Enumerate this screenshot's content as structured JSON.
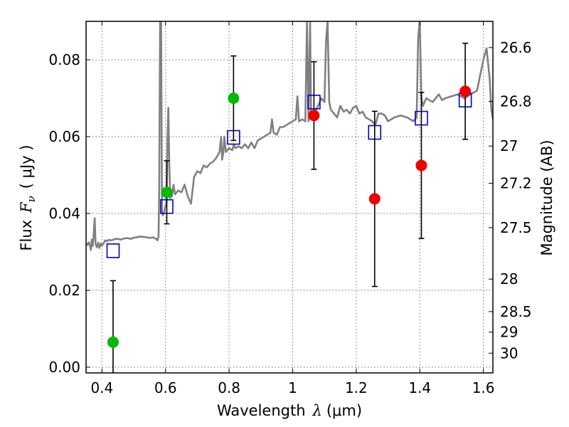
{
  "chart_data": {
    "type": "scatter",
    "xlabel_prefix": "Wavelength",
    "xlabel_symbol": "λ",
    "xlabel_unit": "(μm)",
    "ylabel_prefix": "Flux",
    "ylabel_symbol": "F",
    "ylabel_sub": "ν",
    "ylabel_unit": "( μJy )",
    "y2label": "Magnitude (AB)",
    "xlim": [
      0.35,
      1.63
    ],
    "ylim": [
      -0.0015,
      0.09
    ],
    "grid": true,
    "x_ticks": [
      "0.4",
      "0.6",
      "0.8",
      "1",
      "1.2",
      "1.4",
      "1.6"
    ],
    "y_ticks": [
      "0.00",
      "0.02",
      "0.04",
      "0.06",
      "0.08"
    ],
    "y2_ticks": [
      "26.6",
      "26.8",
      "27",
      "27.2",
      "27.5",
      "28",
      "28.5",
      "29",
      "30"
    ],
    "colors": {
      "model": "#808080",
      "model_flux": "#0000cc",
      "detected": "#00bb00",
      "other": "#ee0000",
      "errorbar": "#000000"
    },
    "series": [
      {
        "kind": "model",
        "points": [
          [
            0.35,
            0.0322
          ],
          [
            0.355,
            0.0318
          ],
          [
            0.358,
            0.0325
          ],
          [
            0.362,
            0.0318
          ],
          [
            0.365,
            0.0305
          ],
          [
            0.368,
            0.0332
          ],
          [
            0.371,
            0.0315
          ],
          [
            0.374,
            0.0345
          ],
          [
            0.377,
            0.0388
          ],
          [
            0.38,
            0.032
          ],
          [
            0.384,
            0.0312
          ],
          [
            0.388,
            0.0324
          ],
          [
            0.392,
            0.031
          ],
          [
            0.396,
            0.0322
          ],
          [
            0.4,
            0.0316
          ],
          [
            0.405,
            0.0322
          ],
          [
            0.41,
            0.033
          ],
          [
            0.415,
            0.0327
          ],
          [
            0.42,
            0.0331
          ],
          [
            0.43,
            0.033
          ],
          [
            0.44,
            0.0333
          ],
          [
            0.45,
            0.0334
          ],
          [
            0.46,
            0.0332
          ],
          [
            0.47,
            0.0335
          ],
          [
            0.48,
            0.0336
          ],
          [
            0.49,
            0.0334
          ],
          [
            0.5,
            0.0337
          ],
          [
            0.51,
            0.0338
          ],
          [
            0.52,
            0.034
          ],
          [
            0.53,
            0.0339
          ],
          [
            0.54,
            0.0338
          ],
          [
            0.55,
            0.0336
          ],
          [
            0.56,
            0.0338
          ],
          [
            0.57,
            0.0334
          ],
          [
            0.575,
            0.033
          ],
          [
            0.578,
            0.034
          ],
          [
            0.58,
            0.045
          ],
          [
            0.583,
            0.09
          ],
          [
            0.586,
            0.09
          ],
          [
            0.589,
            0.04
          ],
          [
            0.592,
            0.0395
          ],
          [
            0.596,
            0.0405
          ],
          [
            0.6,
            0.042
          ],
          [
            0.603,
            0.043
          ],
          [
            0.606,
            0.059
          ],
          [
            0.609,
            0.0675
          ],
          [
            0.612,
            0.052
          ],
          [
            0.615,
            0.044
          ],
          [
            0.62,
            0.0445
          ],
          [
            0.625,
            0.0475
          ],
          [
            0.63,
            0.045
          ],
          [
            0.64,
            0.046
          ],
          [
            0.65,
            0.0455
          ],
          [
            0.66,
            0.0475
          ],
          [
            0.67,
            0.0445
          ],
          [
            0.68,
            0.0425
          ],
          [
            0.69,
            0.0495
          ],
          [
            0.7,
            0.051
          ],
          [
            0.71,
            0.0505
          ],
          [
            0.72,
            0.0525
          ],
          [
            0.73,
            0.052
          ],
          [
            0.74,
            0.053
          ],
          [
            0.75,
            0.0535
          ],
          [
            0.76,
            0.0545
          ],
          [
            0.77,
            0.056
          ],
          [
            0.775,
            0.06
          ],
          [
            0.778,
            0.054
          ],
          [
            0.782,
            0.056
          ],
          [
            0.785,
            0.06
          ],
          [
            0.79,
            0.056
          ],
          [
            0.8,
            0.057
          ],
          [
            0.81,
            0.0565
          ],
          [
            0.815,
            0.058
          ],
          [
            0.82,
            0.057
          ],
          [
            0.83,
            0.0575
          ],
          [
            0.84,
            0.057
          ],
          [
            0.85,
            0.058
          ],
          [
            0.86,
            0.057
          ],
          [
            0.87,
            0.0585
          ],
          [
            0.88,
            0.057
          ],
          [
            0.89,
            0.059
          ],
          [
            0.9,
            0.0595
          ],
          [
            0.91,
            0.06
          ],
          [
            0.92,
            0.0605
          ],
          [
            0.93,
            0.061
          ],
          [
            0.935,
            0.0645
          ],
          [
            0.94,
            0.061
          ],
          [
            0.95,
            0.0605
          ],
          [
            0.96,
            0.0625
          ],
          [
            0.97,
            0.0625
          ],
          [
            0.98,
            0.063
          ],
          [
            0.99,
            0.0635
          ],
          [
            1.0,
            0.064
          ],
          [
            1.01,
            0.0645
          ],
          [
            1.015,
            0.0705
          ],
          [
            1.02,
            0.064
          ],
          [
            1.03,
            0.0645
          ],
          [
            1.04,
            0.064
          ],
          [
            1.045,
            0.09
          ],
          [
            1.05,
            0.064
          ],
          [
            1.055,
            0.09
          ],
          [
            1.058,
            0.0645
          ],
          [
            1.06,
            0.065
          ],
          [
            1.07,
            0.0665
          ],
          [
            1.08,
            0.068
          ],
          [
            1.09,
            0.07
          ],
          [
            1.1,
            0.069
          ],
          [
            1.105,
            0.085
          ],
          [
            1.11,
            0.09
          ],
          [
            1.115,
            0.069
          ],
          [
            1.12,
            0.067
          ],
          [
            1.13,
            0.066
          ],
          [
            1.14,
            0.065
          ],
          [
            1.15,
            0.068
          ],
          [
            1.16,
            0.0665
          ],
          [
            1.17,
            0.067
          ],
          [
            1.18,
            0.066
          ],
          [
            1.19,
            0.0675
          ],
          [
            1.2,
            0.068
          ],
          [
            1.21,
            0.066
          ],
          [
            1.22,
            0.0665
          ],
          [
            1.23,
            0.065
          ],
          [
            1.24,
            0.0645
          ],
          [
            1.25,
            0.064
          ],
          [
            1.26,
            0.063
          ],
          [
            1.27,
            0.066
          ],
          [
            1.28,
            0.066
          ],
          [
            1.29,
            0.0655
          ],
          [
            1.3,
            0.064
          ],
          [
            1.32,
            0.065
          ],
          [
            1.34,
            0.0655
          ],
          [
            1.36,
            0.065
          ],
          [
            1.38,
            0.064
          ],
          [
            1.39,
            0.065
          ],
          [
            1.395,
            0.086
          ],
          [
            1.4,
            0.09
          ],
          [
            1.405,
            0.07
          ],
          [
            1.41,
            0.068
          ],
          [
            1.42,
            0.07
          ],
          [
            1.43,
            0.0695
          ],
          [
            1.44,
            0.069
          ],
          [
            1.45,
            0.07
          ],
          [
            1.46,
            0.071
          ],
          [
            1.47,
            0.0695
          ],
          [
            1.48,
            0.07
          ],
          [
            1.5,
            0.0705
          ],
          [
            1.52,
            0.071
          ],
          [
            1.54,
            0.07
          ],
          [
            1.56,
            0.071
          ],
          [
            1.58,
            0.072
          ],
          [
            1.59,
            0.076
          ],
          [
            1.6,
            0.08
          ],
          [
            1.61,
            0.083
          ],
          [
            1.62,
            0.075
          ],
          [
            1.625,
            0.067
          ],
          [
            1.63,
            0.0645
          ]
        ]
      },
      {
        "kind": "model_flux",
        "points": [
          [
            0.435,
            0.0303
          ],
          [
            0.604,
            0.0418
          ],
          [
            0.814,
            0.0598
          ],
          [
            1.067,
            0.069
          ],
          [
            1.258,
            0.0611
          ],
          [
            1.405,
            0.0648
          ],
          [
            1.543,
            0.0695
          ]
        ]
      },
      {
        "kind": "detected",
        "points": [
          [
            0.435,
            0.0065
          ],
          [
            0.604,
            0.0455
          ],
          [
            0.814,
            0.07
          ]
        ],
        "err": [
          0.016,
          0.0082,
          0.011
        ]
      },
      {
        "kind": "other",
        "points": [
          [
            1.067,
            0.0655
          ],
          [
            1.258,
            0.0438
          ],
          [
            1.405,
            0.0525
          ],
          [
            1.543,
            0.0718
          ]
        ],
        "err": [
          0.014,
          0.0228,
          0.019,
          0.0125
        ]
      }
    ]
  }
}
